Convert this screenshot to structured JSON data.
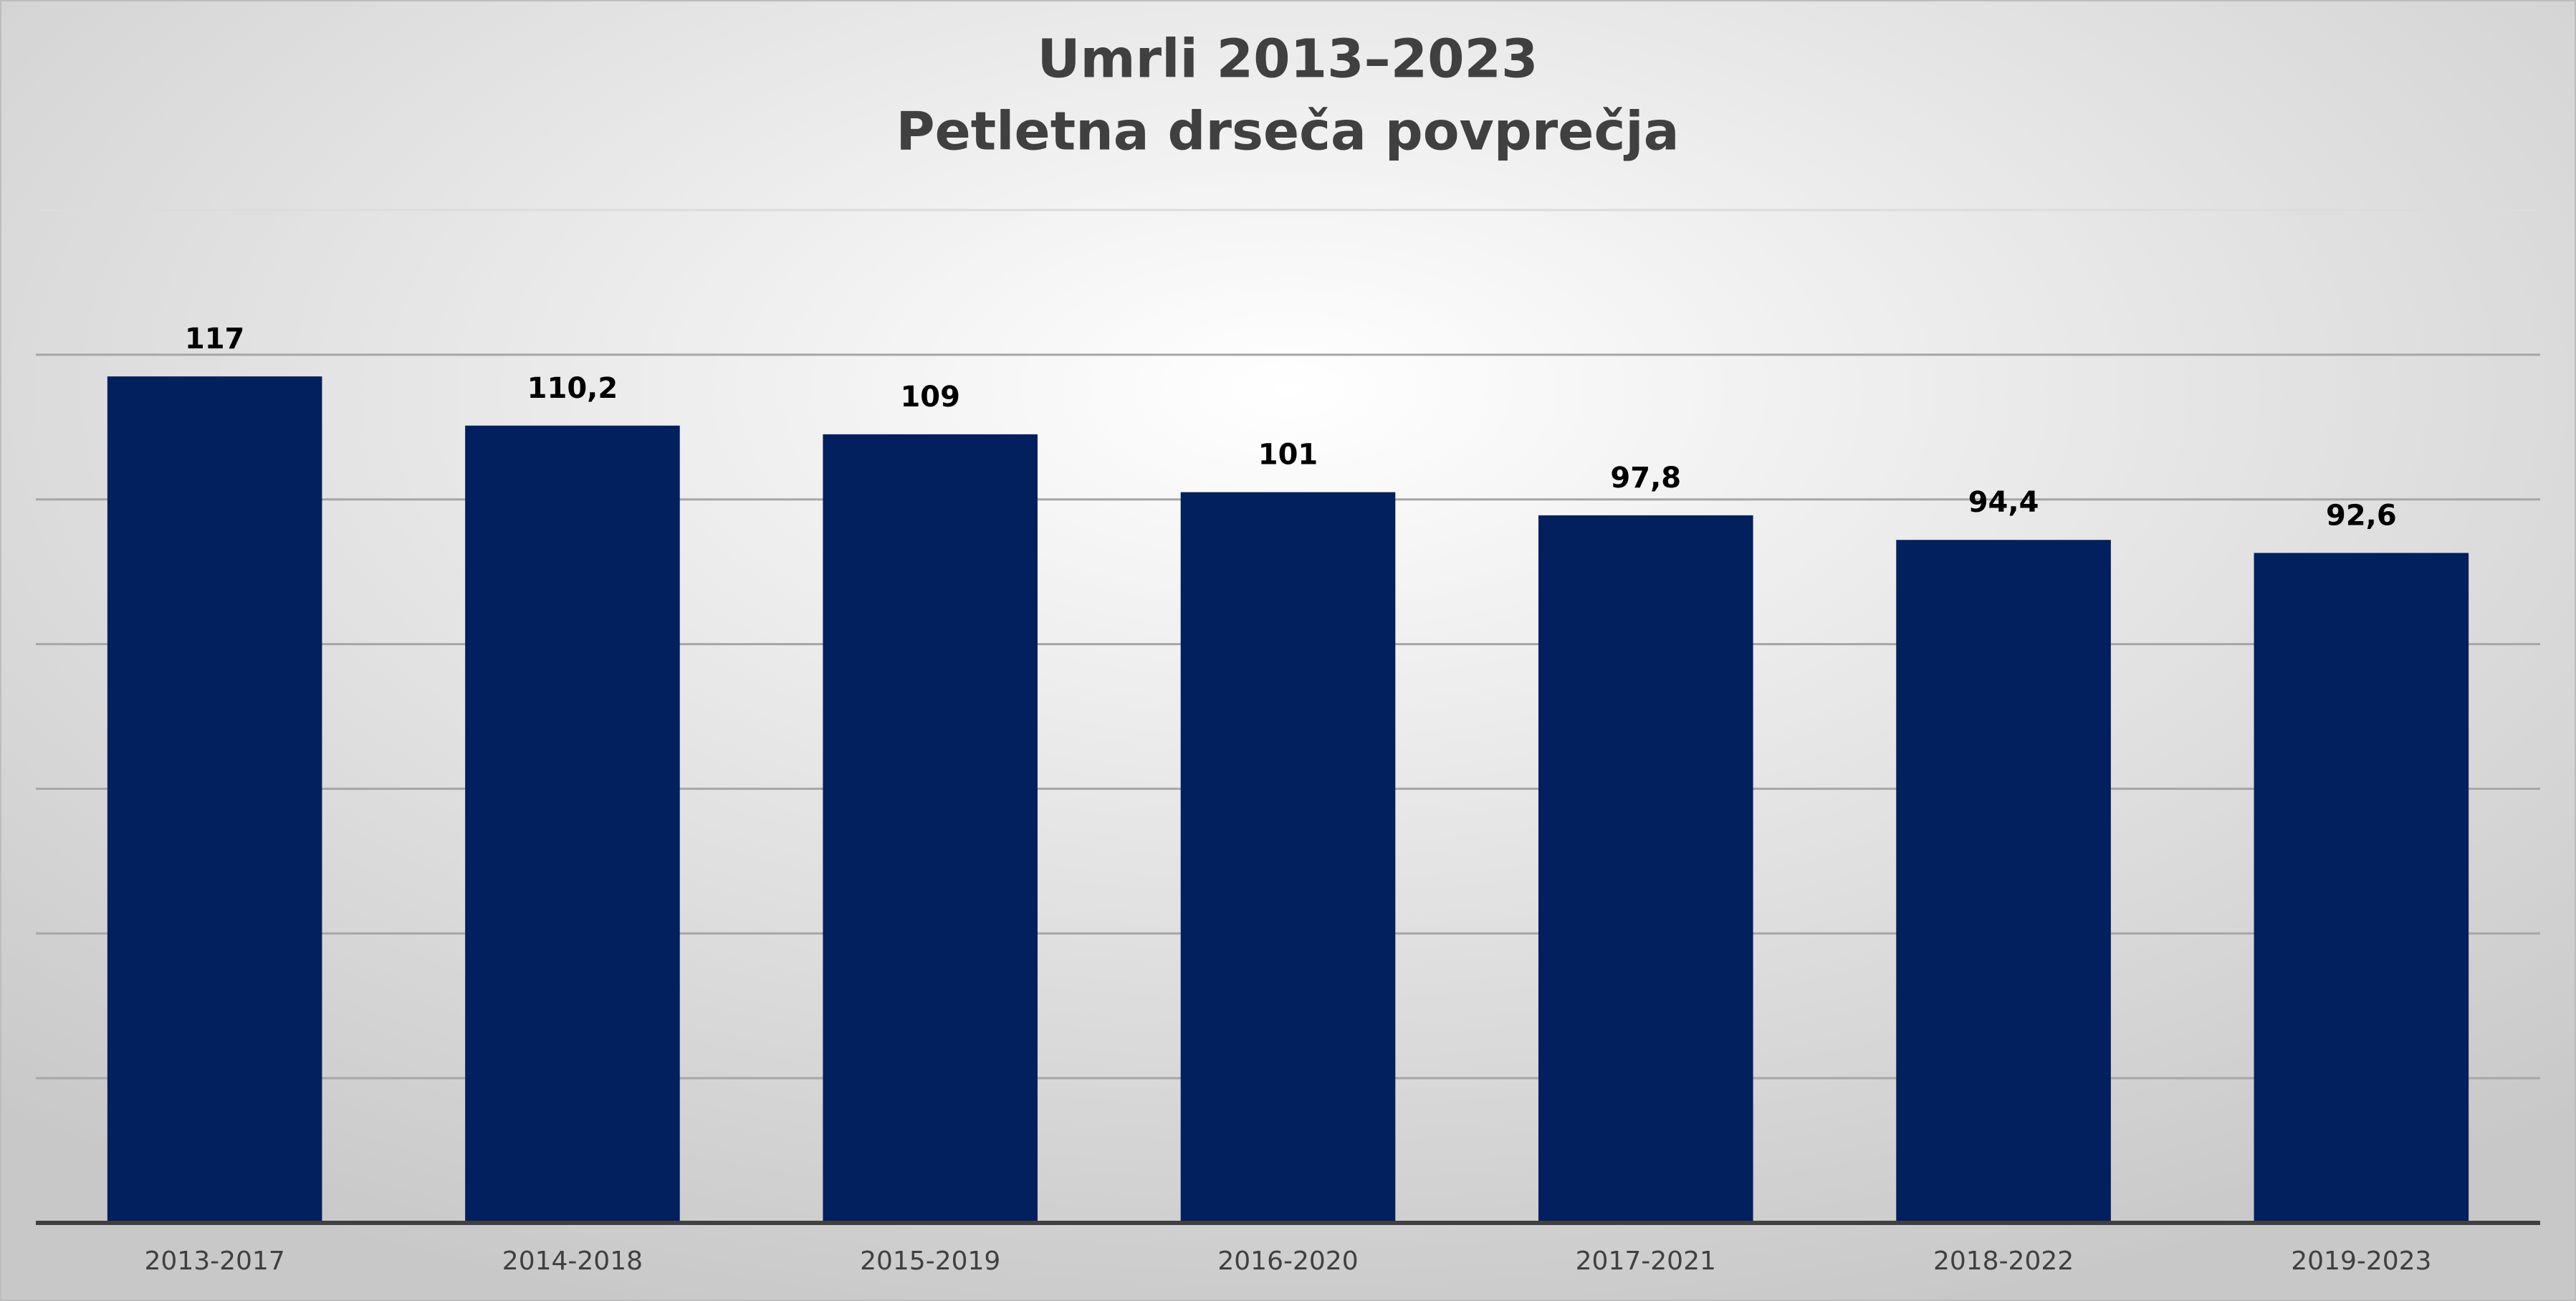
{
  "chart_data": {
    "type": "bar",
    "title": "Umrli 2013–2023",
    "subtitle": "Petletna drseča povprečja",
    "categories": [
      "2013-2017",
      "2014-2018",
      "2015-2019",
      "2016-2020",
      "2017-2021",
      "2018-2022",
      "2019-2023"
    ],
    "values": [
      117,
      110.2,
      109,
      101,
      97.8,
      94.4,
      92.6
    ],
    "value_labels": [
      "117",
      "110,2",
      "109",
      "101",
      "97,8",
      "94,4",
      "92,6"
    ],
    "color": "#021f5e",
    "ylim": [
      0,
      140
    ],
    "yticks": [
      0,
      20,
      40,
      60,
      80,
      100,
      120,
      140
    ],
    "grid": true
  }
}
